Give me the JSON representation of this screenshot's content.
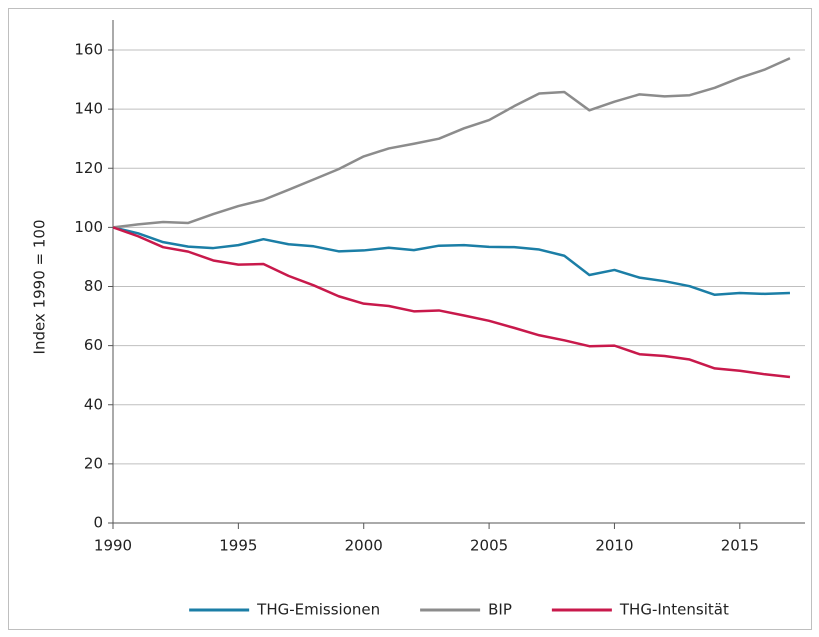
{
  "chart_data": {
    "type": "line",
    "y_label": "Index 1990 = 100",
    "x": [
      1990,
      1991,
      1992,
      1993,
      1994,
      1995,
      1996,
      1997,
      1998,
      1999,
      2000,
      2001,
      2002,
      2003,
      2004,
      2005,
      2006,
      2007,
      2008,
      2009,
      2010,
      2011,
      2012,
      2013,
      2014,
      2015,
      2016,
      2017
    ],
    "series": [
      {
        "name": "THG-Emissionen",
        "color": "#1b7ea6",
        "values": [
          100,
          98,
          95,
          93.5,
          93,
          94,
          96,
          94.3,
          93.6,
          91.9,
          92.2,
          93.1,
          92.3,
          93.8,
          94,
          93.4,
          93.3,
          92.5,
          90.4,
          83.9,
          85.6,
          83,
          81.8,
          80.1,
          77.2,
          77.8,
          77.5,
          77.8
        ]
      },
      {
        "name": "BIP",
        "color": "#8c8c8c",
        "values": [
          100,
          101,
          101.8,
          101.5,
          104.5,
          107.2,
          109.3,
          112.7,
          116.2,
          119.7,
          124,
          126.7,
          128.3,
          130,
          133.5,
          136.3,
          141,
          145.3,
          145.8,
          139.6,
          142.5,
          145,
          144.3,
          144.7,
          147.2,
          150.6,
          153.4,
          157.2
        ]
      },
      {
        "name": "THG-Intensität",
        "color": "#c8194b",
        "values": [
          100,
          97,
          93.3,
          91.8,
          88.8,
          87.4,
          87.6,
          83.6,
          80.4,
          76.7,
          74.2,
          73.4,
          71.6,
          71.9,
          70.2,
          68.4,
          66,
          63.5,
          61.8,
          59.8,
          60,
          57.1,
          56.5,
          55.3,
          52.3,
          51.5,
          50.3,
          49.4
        ]
      }
    ],
    "xlim": [
      1990,
      2017.6
    ],
    "xticks": [
      1990,
      1995,
      2000,
      2005,
      2010,
      2015
    ],
    "ylim": [
      0,
      160
    ],
    "yticks": [
      0,
      20,
      40,
      60,
      80,
      100,
      120,
      140,
      160
    ],
    "grid": true,
    "legend": "bottom"
  }
}
